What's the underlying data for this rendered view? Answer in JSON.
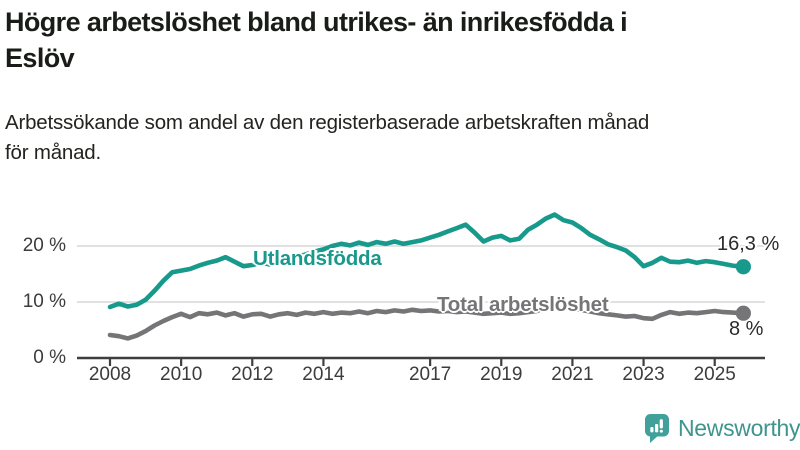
{
  "header": {
    "title_lines": [
      "Högre arbetslöshet bland utrikes- än inrikesfödda i",
      "Eslöv"
    ],
    "subtitle_lines": [
      "Arbetssökande som andel av den registerbaserade arbetskraften månad",
      "för månad."
    ]
  },
  "chart_data": {
    "type": "line",
    "title": "Högre arbetslöshet bland utrikes- än inrikesfödda i Eslöv",
    "subtitle": "Arbetssökande som andel av den registerbaserade arbetskraften månad för månad.",
    "unit": "%",
    "grid": "horizontal",
    "legend_position": "inline-labels",
    "x_start_year": 2008,
    "x_step_years": 0.25,
    "x_tick_labels": [
      "2008",
      "2010",
      "2012",
      "2014",
      "2017",
      "2019",
      "2021",
      "2023",
      "2025"
    ],
    "y_ticks": [
      {
        "value": 0,
        "label": "0 %"
      },
      {
        "value": 10,
        "label": "10 %"
      },
      {
        "value": 20,
        "label": "20 %"
      }
    ],
    "ylim": [
      0,
      27
    ],
    "series": [
      {
        "name": "Utlandsfödda",
        "color": "#17998c",
        "end_value": 16.3,
        "end_value_label": "16,3 %",
        "values": [
          9.1,
          9.7,
          9.2,
          9.5,
          10.4,
          12.0,
          13.8,
          15.3,
          15.6,
          15.9,
          16.5,
          17.0,
          17.4,
          18.0,
          17.2,
          16.4,
          16.6,
          17.0,
          16.7,
          17.1,
          17.5,
          18.0,
          18.5,
          19.0,
          19.4,
          20.0,
          20.4,
          20.1,
          20.6,
          20.2,
          20.7,
          20.4,
          20.8,
          20.4,
          20.7,
          21.0,
          21.5,
          22.0,
          22.6,
          23.2,
          23.8,
          22.4,
          20.8,
          21.5,
          21.8,
          21.0,
          21.3,
          22.9,
          23.8,
          24.9,
          25.6,
          24.6,
          24.2,
          23.2,
          22.0,
          21.2,
          20.3,
          19.8,
          19.2,
          18.0,
          16.4,
          17.0,
          17.9,
          17.2,
          17.1,
          17.4,
          17.0,
          17.3,
          17.1,
          16.8,
          16.5,
          16.3
        ]
      },
      {
        "name": "Total arbetslöshet",
        "color": "#757578",
        "end_value": 8,
        "end_value_label": "8 %",
        "values": [
          4.1,
          3.9,
          3.5,
          4.0,
          4.8,
          5.8,
          6.6,
          7.3,
          7.9,
          7.3,
          8.0,
          7.8,
          8.1,
          7.6,
          8.0,
          7.4,
          7.8,
          7.9,
          7.4,
          7.8,
          8.0,
          7.7,
          8.1,
          7.9,
          8.2,
          7.9,
          8.1,
          8.0,
          8.3,
          8.0,
          8.4,
          8.2,
          8.5,
          8.3,
          8.6,
          8.4,
          8.5,
          8.3,
          8.4,
          8.2,
          8.3,
          8.1,
          7.9,
          8.0,
          8.1,
          7.9,
          8.0,
          8.2,
          8.4,
          9.0,
          9.3,
          9.1,
          8.9,
          8.6,
          8.3,
          8.0,
          7.8,
          7.6,
          7.4,
          7.5,
          7.1,
          7.0,
          7.7,
          8.2,
          7.9,
          8.1,
          8.0,
          8.2,
          8.4,
          8.2,
          8.1,
          8.0
        ]
      }
    ]
  },
  "colors": {
    "grid": "#cfcfcf",
    "axis": "#3f3f3f",
    "axis_text": "#3c3c3c"
  },
  "footer": {
    "brand": "Newsworthy",
    "brand_color": "#41a099"
  }
}
